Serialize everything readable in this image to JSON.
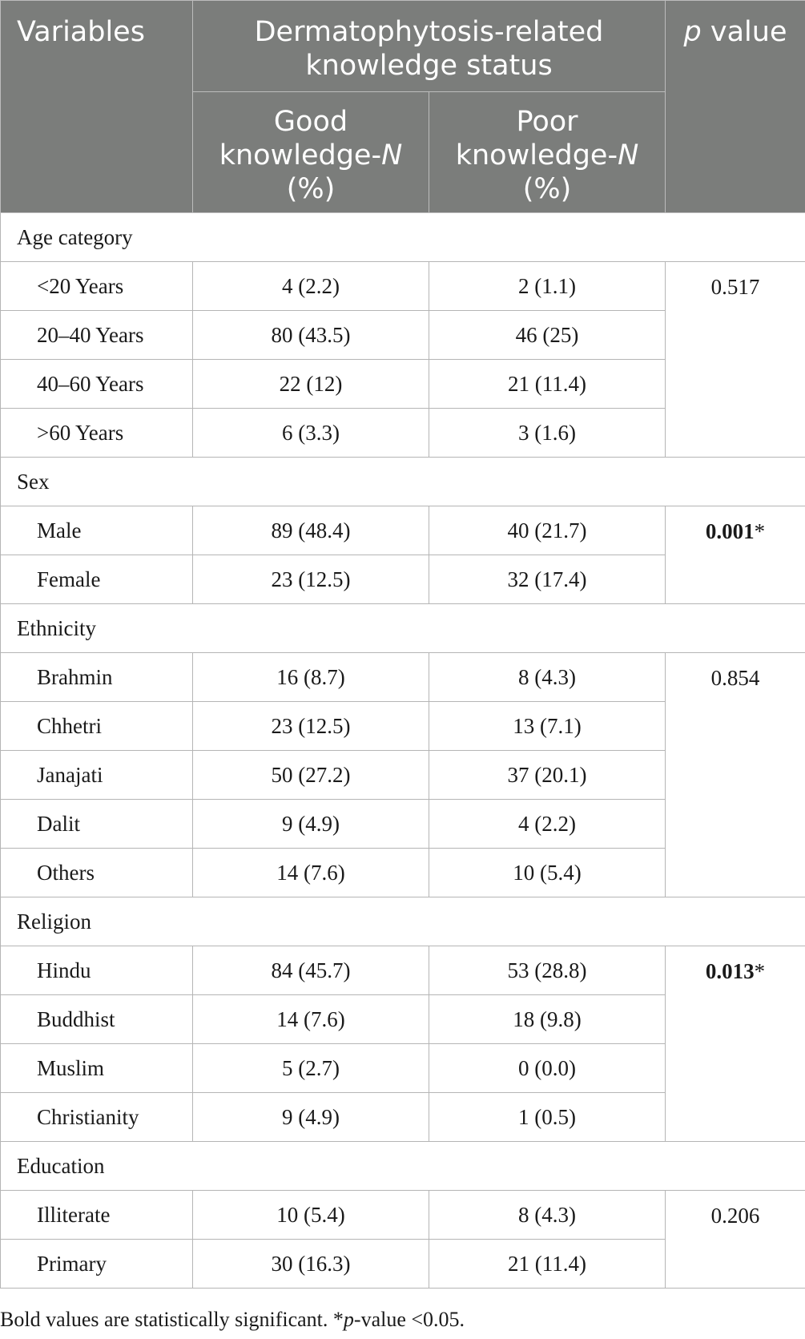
{
  "header": {
    "variables": "Variables",
    "group": "Dermatophytosis-related knowledge status",
    "p_value_p": "p",
    "p_value_rest": " value",
    "good_pre": "Good knowledge-",
    "poor_pre": "Poor knowledge-",
    "n_symbol": "N",
    "pct": "(%)"
  },
  "groups": [
    {
      "category": "Age category",
      "p_value": "0.517",
      "p_bold": false,
      "rows": [
        {
          "label": "<20 Years",
          "good": "4 (2.2)",
          "poor": "2 (1.1)"
        },
        {
          "label": "20–40 Years",
          "good": "80 (43.5)",
          "poor": "46 (25)"
        },
        {
          "label": "40–60 Years",
          "good": "22 (12)",
          "poor": "21 (11.4)"
        },
        {
          "label": ">60 Years",
          "good": "6 (3.3)",
          "poor": "3 (1.6)"
        }
      ]
    },
    {
      "category": "Sex",
      "p_value": "0.001",
      "p_bold": true,
      "rows": [
        {
          "label": "Male",
          "good": "89 (48.4)",
          "poor": "40 (21.7)"
        },
        {
          "label": "Female",
          "good": "23 (12.5)",
          "poor": "32 (17.4)"
        }
      ]
    },
    {
      "category": "Ethnicity",
      "p_value": "0.854",
      "p_bold": false,
      "rows": [
        {
          "label": "Brahmin",
          "good": "16 (8.7)",
          "poor": "8 (4.3)"
        },
        {
          "label": "Chhetri",
          "good": "23 (12.5)",
          "poor": "13 (7.1)"
        },
        {
          "label": "Janajati",
          "good": "50 (27.2)",
          "poor": "37 (20.1)"
        },
        {
          "label": "Dalit",
          "good": "9 (4.9)",
          "poor": "4 (2.2)"
        },
        {
          "label": "Others",
          "good": "14 (7.6)",
          "poor": "10 (5.4)"
        }
      ]
    },
    {
      "category": "Religion",
      "p_value": "0.013",
      "p_bold": true,
      "rows": [
        {
          "label": "Hindu",
          "good": "84 (45.7)",
          "poor": "53 (28.8)"
        },
        {
          "label": "Buddhist",
          "good": "14 (7.6)",
          "poor": "18 (9.8)"
        },
        {
          "label": "Muslim",
          "good": "5 (2.7)",
          "poor": "0 (0.0)"
        },
        {
          "label": "Christianity",
          "good": "9 (4.9)",
          "poor": "1 (0.5)"
        }
      ]
    },
    {
      "category": "Education",
      "p_value": "0.206",
      "p_bold": false,
      "rows": [
        {
          "label": "Illiterate",
          "good": "10 (5.4)",
          "poor": "8 (4.3)"
        },
        {
          "label": "Primary",
          "good": "30 (16.3)",
          "poor": "21 (11.4)"
        }
      ]
    }
  ],
  "significance_mark": "*",
  "footnote": {
    "part1": "Bold values are statistically significant. *",
    "p_italic": "p",
    "part2": "-value <0.05."
  }
}
